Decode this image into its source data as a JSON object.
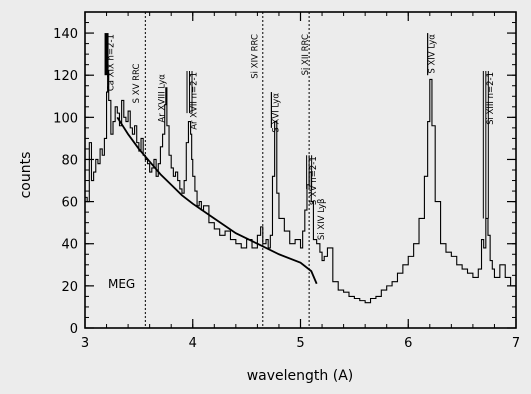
{
  "chart_data": {
    "type": "line",
    "xlabel": "wavelength (A)",
    "ylabel": "counts",
    "xlim": [
      3,
      7
    ],
    "ylim": [
      0,
      150
    ],
    "x_ticks": [
      3,
      4,
      5,
      6,
      7
    ],
    "x_tick_labels": [
      "3",
      "4",
      "5",
      "6",
      "7"
    ],
    "y_ticks": [
      0,
      20,
      40,
      60,
      80,
      100,
      120,
      140
    ],
    "y_tick_labels": [
      "0",
      "20",
      "40",
      "60",
      "80",
      "100",
      "120",
      "140"
    ],
    "grid": false,
    "panel_label": "MEG",
    "edges": [
      3.56,
      4.65,
      5.08
    ],
    "series": [
      {
        "style": "histogram",
        "x": [
          3.0,
          3.02,
          3.04,
          3.06,
          3.08,
          3.1,
          3.12,
          3.14,
          3.16,
          3.18,
          3.2,
          3.21,
          3.22,
          3.24,
          3.26,
          3.28,
          3.3,
          3.32,
          3.34,
          3.36,
          3.38,
          3.4,
          3.42,
          3.44,
          3.46,
          3.48,
          3.5,
          3.52,
          3.54,
          3.56,
          3.58,
          3.6,
          3.62,
          3.64,
          3.66,
          3.68,
          3.7,
          3.72,
          3.74,
          3.75,
          3.76,
          3.78,
          3.8,
          3.82,
          3.84,
          3.86,
          3.88,
          3.9,
          3.92,
          3.94,
          3.96,
          3.98,
          3.99,
          4.0,
          4.02,
          4.04,
          4.06,
          4.08,
          4.1,
          4.15,
          4.2,
          4.25,
          4.3,
          4.35,
          4.4,
          4.45,
          4.5,
          4.55,
          4.6,
          4.63,
          4.65,
          4.68,
          4.7,
          4.72,
          4.74,
          4.76,
          4.78,
          4.8,
          4.85,
          4.9,
          4.95,
          5.0,
          5.02,
          5.04,
          5.06,
          5.08,
          5.1,
          5.12,
          5.15,
          5.18,
          5.2,
          5.22,
          5.25,
          5.3,
          5.35,
          5.4,
          5.45,
          5.5,
          5.55,
          5.6,
          5.65,
          5.7,
          5.75,
          5.8,
          5.85,
          5.9,
          5.95,
          6.0,
          6.05,
          6.1,
          6.15,
          6.18,
          6.2,
          6.22,
          6.25,
          6.3,
          6.35,
          6.4,
          6.45,
          6.5,
          6.55,
          6.6,
          6.65,
          6.68,
          6.7,
          6.72,
          6.74,
          6.76,
          6.78,
          6.8,
          6.85,
          6.9,
          6.95,
          7.0
        ],
        "y": [
          62,
          60,
          88,
          70,
          74,
          80,
          78,
          85,
          82,
          90,
          112,
          122,
          108,
          92,
          98,
          105,
          102,
          96,
          108,
          100,
          98,
          103,
          95,
          92,
          96,
          88,
          84,
          90,
          82,
          80,
          78,
          74,
          76,
          80,
          72,
          78,
          86,
          92,
          106,
          114,
          96,
          82,
          76,
          72,
          74,
          70,
          66,
          64,
          70,
          88,
          98,
          92,
          80,
          72,
          65,
          58,
          60,
          56,
          58,
          50,
          47,
          44,
          46,
          42,
          40,
          38,
          42,
          38,
          44,
          48,
          40,
          42,
          38,
          44,
          72,
          98,
          64,
          52,
          46,
          40,
          42,
          38,
          46,
          56,
          68,
          74,
          60,
          42,
          40,
          36,
          32,
          34,
          38,
          22,
          18,
          17,
          15,
          14,
          13,
          12,
          14,
          15,
          18,
          20,
          22,
          26,
          30,
          34,
          40,
          52,
          72,
          98,
          118,
          96,
          60,
          40,
          36,
          34,
          30,
          28,
          26,
          24,
          28,
          42,
          38,
          52,
          44,
          32,
          28,
          24,
          30,
          24,
          20,
          18
        ]
      },
      {
        "style": "continuum",
        "x": [
          3.3,
          3.4,
          3.5,
          3.6,
          3.7,
          3.8,
          3.9,
          4.0,
          4.2,
          4.4,
          4.6,
          4.8,
          5.0,
          5.1,
          5.15
        ],
        "y": [
          100,
          92,
          85,
          79,
          73,
          68,
          63,
          59,
          52,
          45,
          40,
          35,
          31,
          27,
          21
        ]
      }
    ],
    "line_labels": [
      {
        "text": "Ca XIX n=2-1",
        "x": 3.2,
        "top": 140,
        "bottom": 120,
        "mark": "thick"
      },
      {
        "text": "S XV RRC",
        "x": 3.5,
        "top": 126,
        "bottom": 118,
        "mark": "none"
      },
      {
        "text": "Ar XVIII Lyα",
        "x": 3.74,
        "top": 121,
        "bottom": 113,
        "mark": "none"
      },
      {
        "text": "Ar XVII n=2-1",
        "x": 3.97,
        "top": 122,
        "bottom": 102,
        "mark": "triple"
      },
      {
        "text": "Si XIV RRC",
        "x": 4.6,
        "top": 140,
        "bottom": 132,
        "mark": "none"
      },
      {
        "text": "S XVI Lyα",
        "x": 4.73,
        "top": 112,
        "bottom": 95,
        "mark": "single"
      },
      {
        "text": "Si XII RRC",
        "x": 5.07,
        "top": 140,
        "bottom": 132,
        "mark": "none"
      },
      {
        "text": "S XV n=2-1",
        "x": 5.08,
        "top": 82,
        "bottom": 66,
        "mark": "triple"
      },
      {
        "text": "Si XIV Lyβ",
        "x": 5.22,
        "top": 62,
        "bottom": 52,
        "mark": "none"
      },
      {
        "text": "S XIV Lyα",
        "x": 6.18,
        "top": 140,
        "bottom": 120,
        "mark": "single"
      },
      {
        "text": "Si XIII n=2-1",
        "x": 6.72,
        "top": 122,
        "bottom": 52,
        "mark": "triple"
      }
    ]
  }
}
